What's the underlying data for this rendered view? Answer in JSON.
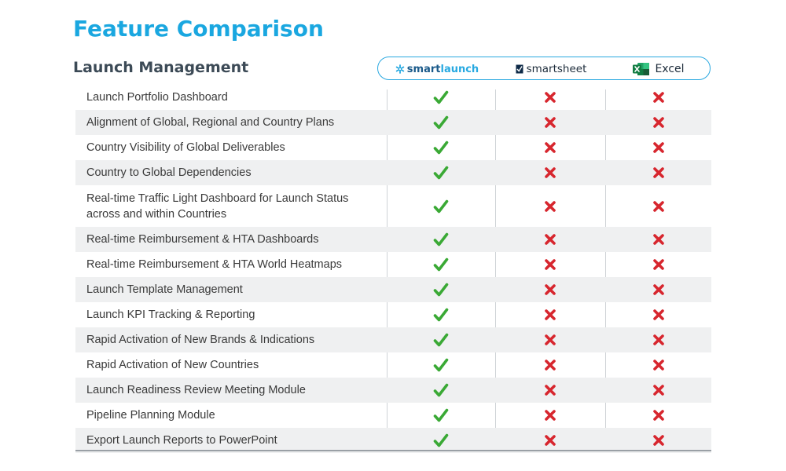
{
  "title": "Feature Comparison",
  "section_title": "Launch Management",
  "products": [
    {
      "brand_prefix": "smart",
      "brand_suffix": "launch",
      "icon": "snowflake-icon"
    },
    {
      "name": "smartsheet",
      "icon": "smartsheet-check-icon"
    },
    {
      "name": "Excel",
      "icon": "excel-icon"
    }
  ],
  "colors": {
    "title": "#1aa7e0",
    "check": "#3aa935",
    "cross": "#d7262e",
    "pill_border": "#2aa8e0"
  },
  "features": [
    {
      "label": "Launch Portfolio Dashboard",
      "smartlaunch": "yes",
      "smartsheet": "no",
      "excel": "no"
    },
    {
      "label": "Alignment of Global, Regional and Country Plans",
      "smartlaunch": "yes",
      "smartsheet": "no",
      "excel": "no"
    },
    {
      "label": "Country Visibility of Global Deliverables",
      "smartlaunch": "yes",
      "smartsheet": "no",
      "excel": "no"
    },
    {
      "label": "Country to Global Dependencies",
      "smartlaunch": "yes",
      "smartsheet": "no",
      "excel": "no"
    },
    {
      "label": "Real-time Traffic Light Dashboard for Launch Status across and within Countries",
      "smartlaunch": "yes",
      "smartsheet": "no",
      "excel": "no"
    },
    {
      "label": "Real-time Reimbursement & HTA Dashboards",
      "smartlaunch": "yes",
      "smartsheet": "no",
      "excel": "no"
    },
    {
      "label": "Real-time Reimbursement & HTA World Heatmaps",
      "smartlaunch": "yes",
      "smartsheet": "no",
      "excel": "no"
    },
    {
      "label": "Launch Template Management",
      "smartlaunch": "yes",
      "smartsheet": "no",
      "excel": "no"
    },
    {
      "label": "Launch KPI Tracking & Reporting",
      "smartlaunch": "yes",
      "smartsheet": "no",
      "excel": "no"
    },
    {
      "label": "Rapid Activation of New Brands & Indications",
      "smartlaunch": "yes",
      "smartsheet": "no",
      "excel": "no"
    },
    {
      "label": "Rapid Activation of New Countries",
      "smartlaunch": "yes",
      "smartsheet": "no",
      "excel": "no"
    },
    {
      "label": "Launch Readiness Review Meeting Module",
      "smartlaunch": "yes",
      "smartsheet": "no",
      "excel": "no"
    },
    {
      "label": "Pipeline Planning Module",
      "smartlaunch": "yes",
      "smartsheet": "no",
      "excel": "no"
    },
    {
      "label": "Export Launch Reports to PowerPoint",
      "smartlaunch": "yes",
      "smartsheet": "no",
      "excel": "no"
    }
  ]
}
